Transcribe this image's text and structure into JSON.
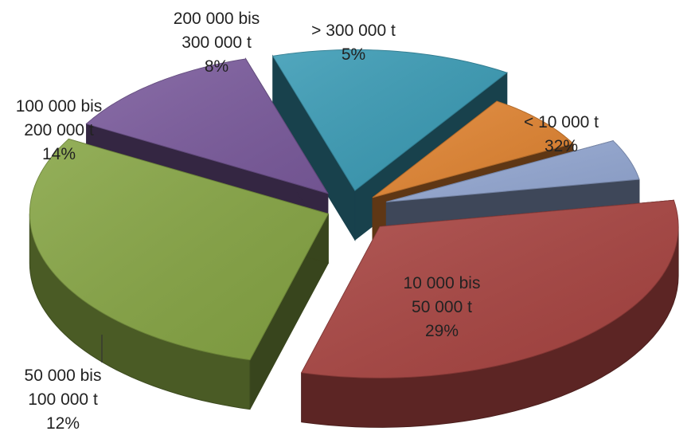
{
  "chart_data": {
    "type": "pie",
    "title": "",
    "slices": [
      {
        "label_lines": [
          "< 10 000 t"
        ],
        "value": 32,
        "value_label": "32%",
        "color": "#a84441"
      },
      {
        "label_lines": [
          "10 000 bis",
          "50 000 t"
        ],
        "value": 29,
        "value_label": "29%",
        "color": "#86a544"
      },
      {
        "label_lines": [
          "50 000 bis",
          "100 000 t"
        ],
        "value": 12,
        "value_label": "12%",
        "color": "#7b5b9d"
      },
      {
        "label_lines": [
          "100 000 bis",
          "200 000 t"
        ],
        "value": 14,
        "value_label": "14%",
        "color": "#3a9bb5"
      },
      {
        "label_lines": [
          "200 000 bis",
          "300 000 t"
        ],
        "value": 8,
        "value_label": "8%",
        "color": "#e18431"
      },
      {
        "label_lines": [
          "> 300 000 t"
        ],
        "value": 5,
        "value_label": "5%",
        "color": "#94a8d3"
      }
    ],
    "style": "3d-exploded-pie"
  }
}
